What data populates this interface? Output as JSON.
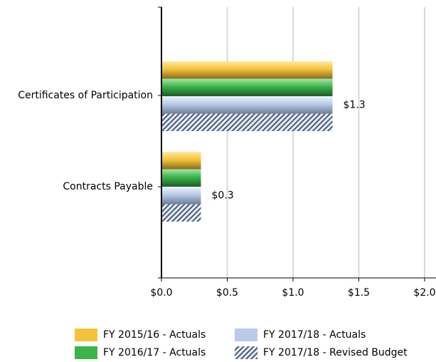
{
  "chart_data": {
    "type": "bar",
    "orientation": "horizontal",
    "categories": [
      "Certificates of Participation",
      "Contracts Payable"
    ],
    "series": [
      {
        "name": "FY 2015/16 - Actuals",
        "color": "#f5c33b",
        "values": [
          1.3,
          0.3
        ]
      },
      {
        "name": "FY 2016/17 - Actuals",
        "color": "#3cb44b",
        "values": [
          1.3,
          0.3
        ]
      },
      {
        "name": "FY 2017/18 - Actuals",
        "color": "#b8cbe8",
        "values": [
          1.3,
          0.3
        ],
        "value_labels": [
          "$1.3",
          "$0.3"
        ]
      },
      {
        "name": "FY 2017/18 - Revised Budget",
        "color": "#4a5a78",
        "pattern": "hatch",
        "values": [
          1.3,
          0.3
        ]
      }
    ],
    "xlim": [
      0,
      2.0
    ],
    "xticks": [
      {
        "value": 0,
        "label": "$0.0"
      },
      {
        "value": 0.5,
        "label": "$0.5"
      },
      {
        "value": 1.0,
        "label": "$1.0"
      },
      {
        "value": 1.5,
        "label": "$1.5"
      },
      {
        "value": 2.0,
        "label": "$2.0"
      }
    ],
    "grid": true,
    "legend": "bottom"
  }
}
